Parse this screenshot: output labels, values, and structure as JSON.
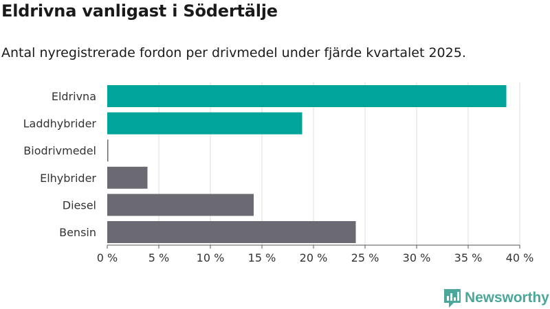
{
  "header": {
    "title": "Eldrivna vanligast i Södertälje",
    "subtitle": "Antal nyregistrerade fordon per drivmedel under fjärde kvartalet 2025."
  },
  "chart_data": {
    "type": "bar",
    "orientation": "horizontal",
    "title": "Eldrivna vanligast i Södertälje",
    "subtitle": "Antal nyregistrerade fordon per drivmedel under fjärde kvartalet 2025.",
    "categories": [
      "Eldrivna",
      "Laddhybrider",
      "Biodrivmedel",
      "Elhybrider",
      "Diesel",
      "Bensin"
    ],
    "values": [
      38.7,
      18.9,
      0.1,
      3.9,
      14.2,
      24.1
    ],
    "bar_colors": [
      "#00a49a",
      "#00a49a",
      "#6b6a72",
      "#6b6a72",
      "#6b6a72",
      "#6b6a72"
    ],
    "x_ticks": [
      0,
      5,
      10,
      15,
      20,
      25,
      30,
      35,
      40
    ],
    "x_tick_labels": [
      "0 %",
      "5 %",
      "10 %",
      "15 %",
      "20 %",
      "25 %",
      "30 %",
      "35 %",
      "40 %"
    ],
    "xlim": [
      0,
      40
    ],
    "xlabel": "",
    "ylabel": "",
    "grid": "vertical"
  },
  "brand": {
    "name": "Newsworthy",
    "icon": "newsworthy-logo-icon",
    "color": "#4aa79a"
  }
}
